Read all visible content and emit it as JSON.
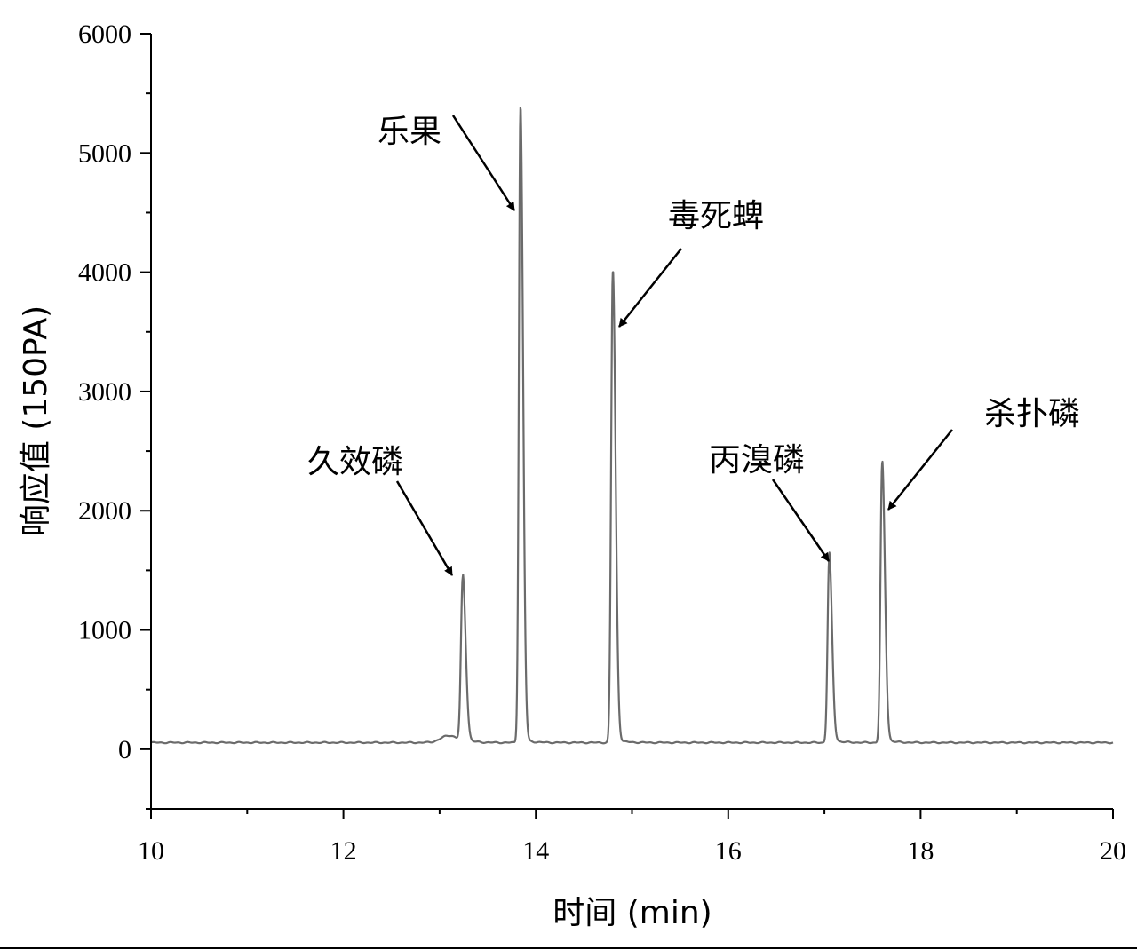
{
  "chart_data": {
    "type": "line",
    "title": "",
    "xlabel": "时间 (min)",
    "ylabel": "响应值 (150PA)",
    "xlim": [
      10,
      20
    ],
    "ylim": [
      -500,
      6000
    ],
    "x_ticks": [
      10,
      12,
      14,
      16,
      18,
      20
    ],
    "y_ticks": [
      0,
      1000,
      2000,
      3000,
      4000,
      5000,
      6000
    ],
    "x_tick_labels": [
      "10",
      "12",
      "14",
      "16",
      "18",
      "20"
    ],
    "y_tick_labels": [
      "0",
      "1000",
      "2000",
      "3000",
      "4000",
      "5000",
      "6000"
    ],
    "grid": false,
    "line_color": "#6b6b6b",
    "baseline": 55,
    "series": [
      {
        "peaks": [
          {
            "x": 13.24,
            "y": 1420
          },
          {
            "x": 13.84,
            "y": 5380
          },
          {
            "x": 14.8,
            "y": 4000
          },
          {
            "x": 17.05,
            "y": 1610
          },
          {
            "x": 17.6,
            "y": 2390
          }
        ]
      }
    ],
    "annotations": [
      {
        "text": "久效磷",
        "target_x": 13.24,
        "target_y": 1420
      },
      {
        "text": "乐果",
        "target_x": 13.84,
        "target_y": 4500
      },
      {
        "text": "毒死蜱",
        "target_x": 14.83,
        "target_y": 3550
      },
      {
        "text": "丙溴磷",
        "target_x": 17.07,
        "target_y": 1570
      },
      {
        "text": "杀扑磷",
        "target_x": 17.6,
        "target_y": 2030
      }
    ]
  }
}
